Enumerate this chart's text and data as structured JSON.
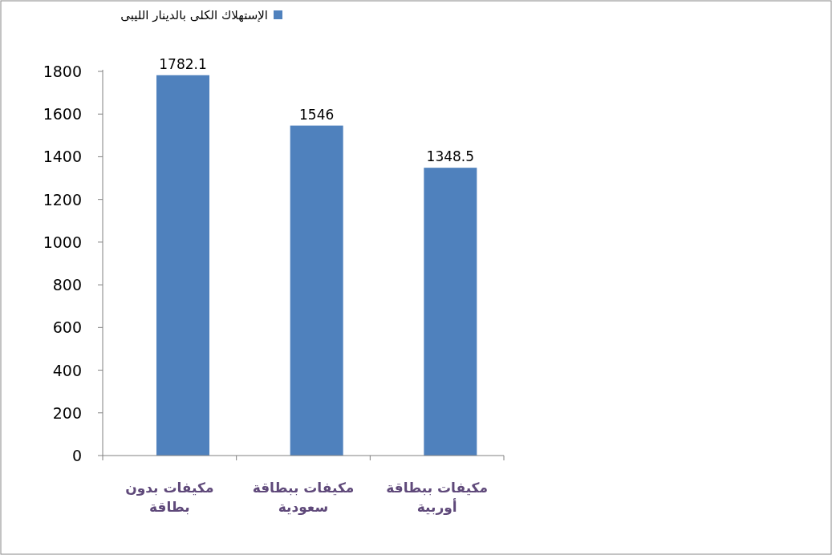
{
  "chart_data": {
    "type": "bar",
    "categories": [
      "مكيفات بدون بطاقة",
      "مكيفات ببطاقة سعودية",
      "مكيفات ببطاقة أوربية"
    ],
    "series": [
      {
        "name": "الإستهلاك الكلى بالدينار الليبى",
        "color": "#4f81bd",
        "values": [
          1782.1,
          1546,
          1348.5
        ]
      }
    ],
    "ylim": [
      0,
      1800
    ],
    "yticks": [
      0,
      200,
      400,
      600,
      800,
      1000,
      1200,
      1400,
      1600,
      1800
    ],
    "data_labels": true,
    "legend": "top left"
  }
}
